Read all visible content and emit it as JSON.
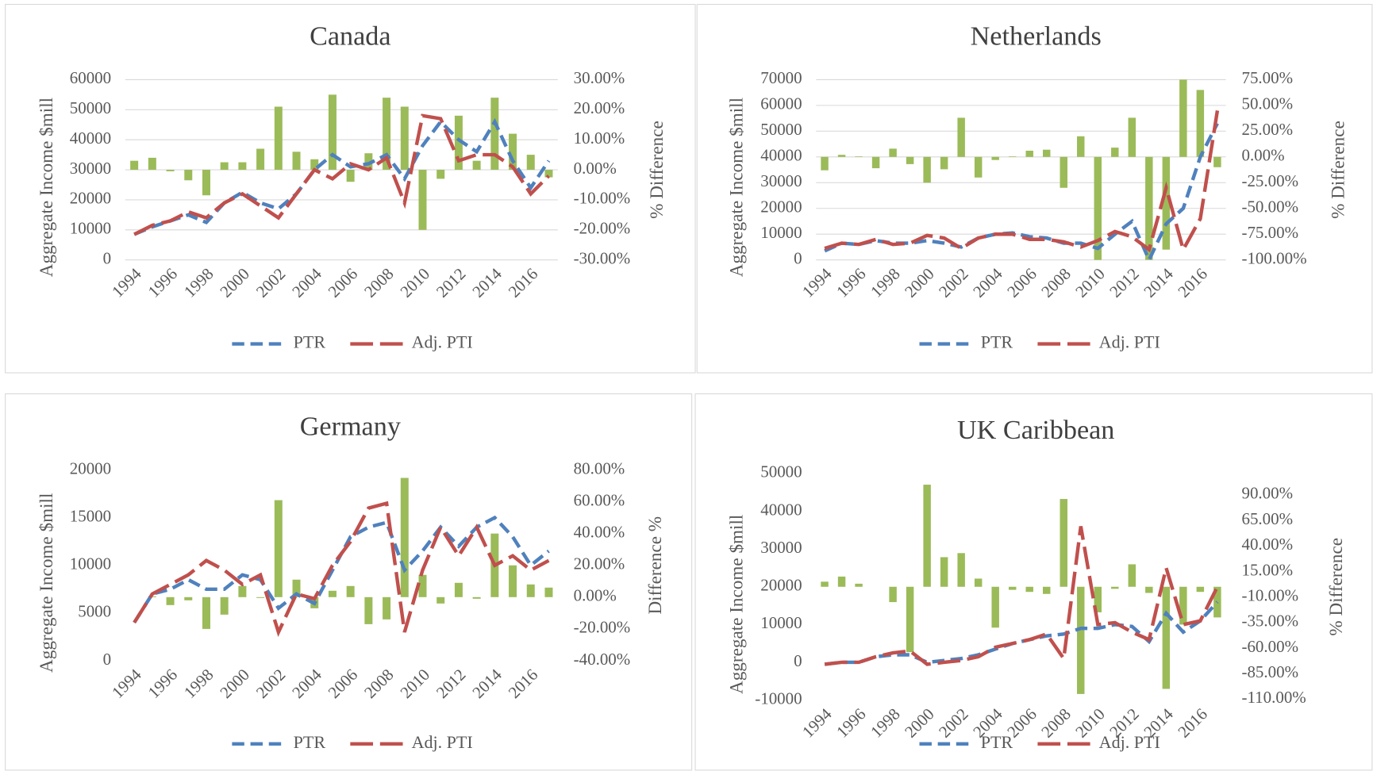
{
  "chart_data": [
    {
      "type": "combo",
      "title": "Canada",
      "y_label": "Aggregate Income $mill",
      "y2_label": "% Difference",
      "categories": [
        "1994",
        null,
        "1996",
        null,
        "1998",
        null,
        "2000",
        null,
        "2002",
        null,
        "2004",
        null,
        "2006",
        null,
        "2008",
        null,
        "2010",
        null,
        "2012",
        null,
        "2014",
        null,
        "2016",
        null
      ],
      "ylim": [
        0,
        60000
      ],
      "yticks": [
        0,
        10000,
        20000,
        30000,
        40000,
        50000,
        60000
      ],
      "y2lim": [
        -30,
        30
      ],
      "y2ticks": [
        {
          "value": -30,
          "label": "-30.00%"
        },
        {
          "value": -20,
          "label": "-20.00%"
        },
        {
          "value": -10,
          "label": "-10.00%"
        },
        {
          "value": 0,
          "label": "0.00%"
        },
        {
          "value": 10,
          "label": "10.00%"
        },
        {
          "value": 20,
          "label": "20.00%"
        },
        {
          "value": 30,
          "label": "30.00%"
        }
      ],
      "grid": true,
      "legend": "bottom",
      "series": [
        {
          "type": "bar",
          "axis": "y2",
          "color": "#9bbb59",
          "values": [
            3,
            4,
            -0.5,
            -3.5,
            -8.5,
            2.5,
            2.5,
            7,
            21,
            6,
            3.5,
            25,
            -4,
            5.5,
            24,
            21,
            -20,
            -3,
            18,
            3,
            24,
            12,
            5,
            -2.5
          ]
        },
        {
          "type": "line",
          "name": "PTR",
          "color": "#4f81bd",
          "dash": "14 7",
          "values": [
            8500,
            11000,
            13000,
            15000,
            12500,
            19000,
            22500,
            19000,
            17000,
            22000,
            30000,
            35000,
            31000,
            32000,
            35000,
            27000,
            38000,
            46000,
            40000,
            36000,
            46000,
            33000,
            24000,
            33000
          ]
        },
        {
          "type": "line",
          "name": "Adj. PTI",
          "color": "#c0504d",
          "dash": "26 8",
          "values": [
            8500,
            11500,
            13000,
            16000,
            14000,
            19000,
            22000,
            18000,
            14000,
            22000,
            30000,
            27000,
            32000,
            30000,
            34000,
            19000,
            48000,
            47000,
            33000,
            35000,
            35000,
            31000,
            22000,
            28000
          ]
        }
      ]
    },
    {
      "type": "combo",
      "title": "Netherlands",
      "y_label": "Aggregate Income $mill",
      "y2_label": "% Difference",
      "categories": [
        "1994",
        null,
        "1996",
        null,
        "1998",
        null,
        "2000",
        null,
        "2002",
        null,
        "2004",
        null,
        "2006",
        null,
        "2008",
        null,
        "2010",
        null,
        "2012",
        null,
        "2014",
        null,
        "2016",
        null
      ],
      "ylim": [
        0,
        70000
      ],
      "yticks": [
        0,
        10000,
        20000,
        30000,
        40000,
        50000,
        60000,
        70000
      ],
      "y2lim": [
        -100,
        75
      ],
      "y2ticks": [
        {
          "value": -100,
          "label": "-100.00%"
        },
        {
          "value": -75,
          "label": "-75.00%"
        },
        {
          "value": -50,
          "label": "-50.00%"
        },
        {
          "value": -25,
          "label": "-25.00%"
        },
        {
          "value": 0,
          "label": "0.00%"
        },
        {
          "value": 25,
          "label": "25.00%"
        },
        {
          "value": 50,
          "label": "50.00%"
        },
        {
          "value": 75,
          "label": "75.00%"
        }
      ],
      "grid": true,
      "legend": "bottom",
      "series": [
        {
          "type": "bar",
          "axis": "y2",
          "color": "#9bbb59",
          "values": [
            -13,
            2,
            0.5,
            -11,
            8,
            -7,
            -25,
            -12,
            38,
            -20,
            -3,
            0.5,
            6,
            7,
            -30,
            20,
            -100,
            9,
            38,
            -100,
            -90,
            75,
            65,
            -10
          ]
        },
        {
          "type": "line",
          "name": "PTR",
          "color": "#4f81bd",
          "dash": "14 7",
          "values": [
            3500,
            6500,
            6000,
            7500,
            6500,
            6500,
            7500,
            6500,
            5000,
            8500,
            10000,
            10500,
            9000,
            8500,
            6500,
            6500,
            4500,
            10000,
            15000,
            0,
            14000,
            20000,
            40000,
            53000
          ]
        },
        {
          "type": "line",
          "name": "Adj. PTI",
          "color": "#c0504d",
          "dash": "26 8",
          "values": [
            4500,
            6500,
            6000,
            8000,
            6000,
            6500,
            9500,
            8500,
            4500,
            8500,
            10000,
            10000,
            8000,
            8000,
            7000,
            5000,
            7500,
            11000,
            9000,
            4000,
            28000,
            4000,
            16000,
            58000
          ]
        }
      ]
    },
    {
      "type": "combo",
      "title": "Germany",
      "y_label": "Aggregate Income $mill",
      "y2_label": "Difference %",
      "categories": [
        "1994",
        null,
        "1996",
        null,
        "1998",
        null,
        "2000",
        null,
        "2002",
        null,
        "2004",
        null,
        "2006",
        null,
        "2008",
        null,
        "2010",
        null,
        "2012",
        null,
        "2014",
        null,
        "2016",
        null
      ],
      "ylim": [
        0,
        20000
      ],
      "yticks": [
        0,
        5000,
        10000,
        15000,
        20000
      ],
      "y2lim": [
        -40,
        80
      ],
      "y2ticks": [
        {
          "value": -40,
          "label": "-40.00%"
        },
        {
          "value": -20,
          "label": "-20.00%"
        },
        {
          "value": 0,
          "label": "0.00%"
        },
        {
          "value": 20,
          "label": "20.00%"
        },
        {
          "value": 40,
          "label": "40.00%"
        },
        {
          "value": 60,
          "label": "60.00%"
        },
        {
          "value": 80,
          "label": "80.00%"
        }
      ],
      "grid": false,
      "legend": "bottom",
      "series": [
        {
          "type": "bar",
          "axis": "y2",
          "color": "#9bbb59",
          "values": [
            0,
            0.5,
            -5,
            -2,
            -20,
            -11,
            7,
            -0.5,
            61,
            11,
            -7,
            4,
            7,
            -17,
            -14,
            75,
            14,
            -4,
            9,
            -1,
            40,
            20,
            8,
            6
          ]
        },
        {
          "type": "line",
          "name": "PTR",
          "color": "#4f81bd",
          "dash": "14 7",
          "values": [
            4000,
            7000,
            7500,
            8500,
            7500,
            7500,
            9000,
            8500,
            5500,
            7000,
            6000,
            9500,
            13000,
            14000,
            14500,
            9500,
            11500,
            14000,
            12000,
            14000,
            15000,
            13000,
            10000,
            11500
          ]
        },
        {
          "type": "line",
          "name": "Adj. PTI",
          "color": "#c0504d",
          "dash": "26 8",
          "values": [
            4000,
            7000,
            8000,
            9000,
            10500,
            9500,
            8000,
            9000,
            3000,
            7000,
            6500,
            10000,
            12500,
            16000,
            16500,
            3000,
            9500,
            14000,
            11000,
            14000,
            10000,
            11000,
            9500,
            10500
          ]
        }
      ]
    },
    {
      "type": "combo",
      "title": "UK Caribbean",
      "y_label": "Aggregate Income $mill",
      "y2_label": "% Difference",
      "categories": [
        "1994",
        null,
        "1996",
        null,
        "1998",
        null,
        "2000",
        null,
        "2002",
        null,
        "2004",
        null,
        "2006",
        null,
        "2008",
        null,
        "2010",
        null,
        "2012",
        null,
        "2014",
        null,
        "2016",
        null
      ],
      "ylim": [
        -10000,
        50000
      ],
      "yticks": [
        -10000,
        0,
        10000,
        20000,
        30000,
        40000,
        50000
      ],
      "y2lim": [
        -111,
        111
      ],
      "y2ticks": [
        {
          "value": -110,
          "label": "-110.00%"
        },
        {
          "value": -85,
          "label": "-85.00%"
        },
        {
          "value": -60,
          "label": "-60.00%"
        },
        {
          "value": -35,
          "label": "-35.00%"
        },
        {
          "value": -10,
          "label": "-10.00%"
        },
        {
          "value": 15,
          "label": "15.00%"
        },
        {
          "value": 40,
          "label": "40.00%"
        },
        {
          "value": 65,
          "label": "65.00%"
        },
        {
          "value": 90,
          "label": "90.00%"
        }
      ],
      "grid": false,
      "legend": "bottom",
      "series": [
        {
          "type": "bar",
          "axis": "y2",
          "color": "#9bbb59",
          "values": [
            5,
            10,
            3,
            0,
            -15,
            -64,
            100,
            29,
            33,
            8,
            -40,
            -3,
            -5,
            -7,
            86,
            -105,
            -25,
            -2,
            22,
            -6,
            -100,
            -37,
            -5,
            -30
          ]
        },
        {
          "type": "line",
          "name": "PTR",
          "color": "#4f81bd",
          "dash": "14 7",
          "values": [
            -500,
            0,
            0,
            1500,
            2000,
            2000,
            0,
            500,
            1000,
            2000,
            3500,
            5000,
            6000,
            7000,
            7500,
            9000,
            9000,
            10000,
            9500,
            5500,
            13000,
            8000,
            11000,
            16000
          ]
        },
        {
          "type": "line",
          "name": "Adj. PTI",
          "color": "#c0504d",
          "dash": "26 8",
          "values": [
            -500,
            0,
            0,
            1500,
            2500,
            3000,
            -500,
            0,
            500,
            1500,
            4000,
            5000,
            6000,
            7500,
            1000,
            36000,
            10000,
            10500,
            8000,
            6000,
            25000,
            10000,
            11000,
            20000
          ]
        }
      ]
    }
  ]
}
